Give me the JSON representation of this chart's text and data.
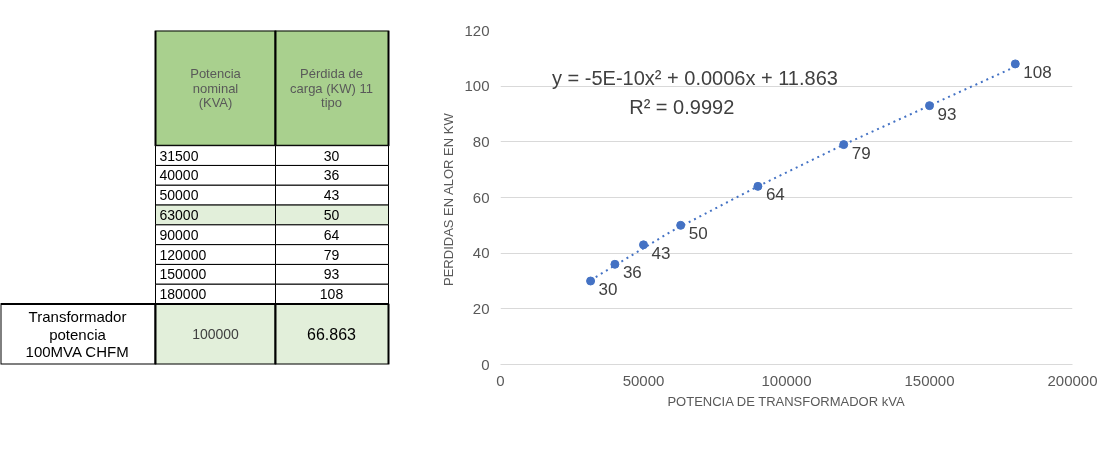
{
  "chart_data": {
    "type": "scatter",
    "xlabel": "POTENCIA DE TRANSFORMADOR kVA",
    "ylabel": "PERDIDAS EN ALOR  EN KW",
    "x": [
      31500,
      40000,
      50000,
      63000,
      90000,
      120000,
      150000,
      180000
    ],
    "series": [
      {
        "color": "#4472c4",
        "marker": "circle",
        "values": [
          30,
          36,
          43,
          50,
          64,
          79,
          93,
          108
        ],
        "value_labels": [
          "30",
          "36",
          "43",
          "50",
          "64",
          "79",
          "93",
          "108"
        ]
      },
      {
        "type": "line",
        "color": "#4472c4",
        "line_style": "dotted",
        "marker": "none",
        "x": [
          31500,
          60000,
          90000,
          120000,
          150000,
          180000
        ],
        "values": [
          30.3,
          48,
          64,
          79,
          93,
          107
        ]
      }
    ],
    "grid": "y",
    "xlim": [
      0,
      200000
    ],
    "ylim": [
      0,
      120
    ],
    "xticks": [
      0,
      50000,
      100000,
      150000,
      200000
    ],
    "yticks": [
      0,
      20,
      40,
      60,
      80,
      100,
      120
    ],
    "annotations": [
      "y = -5E-10x² + 0.0006x + 11.863",
      "R² = 0.9992",
      "Potencia nominal (KVA)",
      "Pérdida de carga (KW) 11 tipo",
      "31500",
      "30",
      "40000",
      "36",
      "50000",
      "43",
      "63000",
      "50",
      "90000",
      "64",
      "120000",
      "79",
      "150000",
      "93",
      "180000",
      "108",
      "Transformador potencia 100MVA CHFM",
      "100000",
      "66.863"
    ]
  }
}
